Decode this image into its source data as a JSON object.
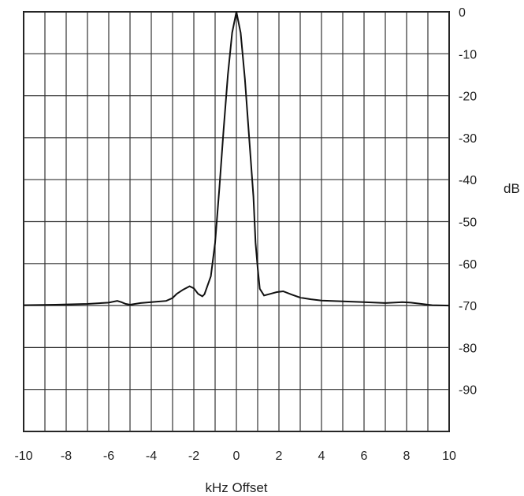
{
  "chart_data": {
    "type": "line",
    "title": "",
    "xlabel": "kHz Offset",
    "ylabel": "dB",
    "xlim": [
      -10,
      10
    ],
    "ylim": [
      -100,
      0
    ],
    "grid": true,
    "x_ticks": [
      -10,
      -8,
      -6,
      -4,
      -2,
      0,
      2,
      4,
      6,
      8,
      10
    ],
    "y_ticks": [
      0,
      -10,
      -20,
      -30,
      -40,
      -50,
      -60,
      -70,
      -80,
      -90
    ],
    "x_tick_labels": [
      "-10",
      "-8",
      "-6",
      "-4",
      "-2",
      "0",
      "2",
      "4",
      "6",
      "8",
      "10"
    ],
    "y_tick_labels": [
      "0",
      "-10",
      "-20",
      "-30",
      "-40",
      "-50",
      "-60",
      "-70",
      "-80",
      "-90"
    ],
    "series": [
      {
        "x": [
          -10,
          -8.5,
          -7,
          -6,
          -5.6,
          -5.4,
          -5.2,
          -5.0,
          -4.5,
          -4.0,
          -3.3,
          -3.0,
          -2.8,
          -2.5,
          -2.2,
          -2.0,
          -1.8,
          -1.6,
          -1.5,
          -1.2,
          -1.0,
          -0.8,
          -0.6,
          -0.4,
          -0.2,
          0.0,
          0.2,
          0.4,
          0.6,
          0.8,
          0.9,
          1.0,
          1.1,
          1.3,
          1.6,
          1.9,
          2.2,
          2.6,
          3.0,
          3.5,
          4.0,
          5.0,
          6.0,
          7.0,
          7.8,
          8.2,
          8.7,
          9.2,
          10
        ],
        "values": [
          -69.9,
          -69.8,
          -69.6,
          -69.3,
          -68.9,
          -69.2,
          -69.6,
          -69.8,
          -69.4,
          -69.2,
          -68.9,
          -68.2,
          -67.2,
          -66.2,
          -65.4,
          -65.9,
          -67.2,
          -67.8,
          -67.3,
          -63.0,
          -55.0,
          -42.0,
          -28.0,
          -15.0,
          -5.0,
          0.0,
          -5.0,
          -16.0,
          -30.0,
          -44.0,
          -55.0,
          -61.0,
          -66.0,
          -67.6,
          -67.2,
          -66.8,
          -66.6,
          -67.4,
          -68.1,
          -68.5,
          -68.8,
          -69.0,
          -69.2,
          -69.4,
          -69.2,
          -69.3,
          -69.6,
          -69.9,
          -70.0
        ],
        "color": "#111111"
      }
    ]
  }
}
